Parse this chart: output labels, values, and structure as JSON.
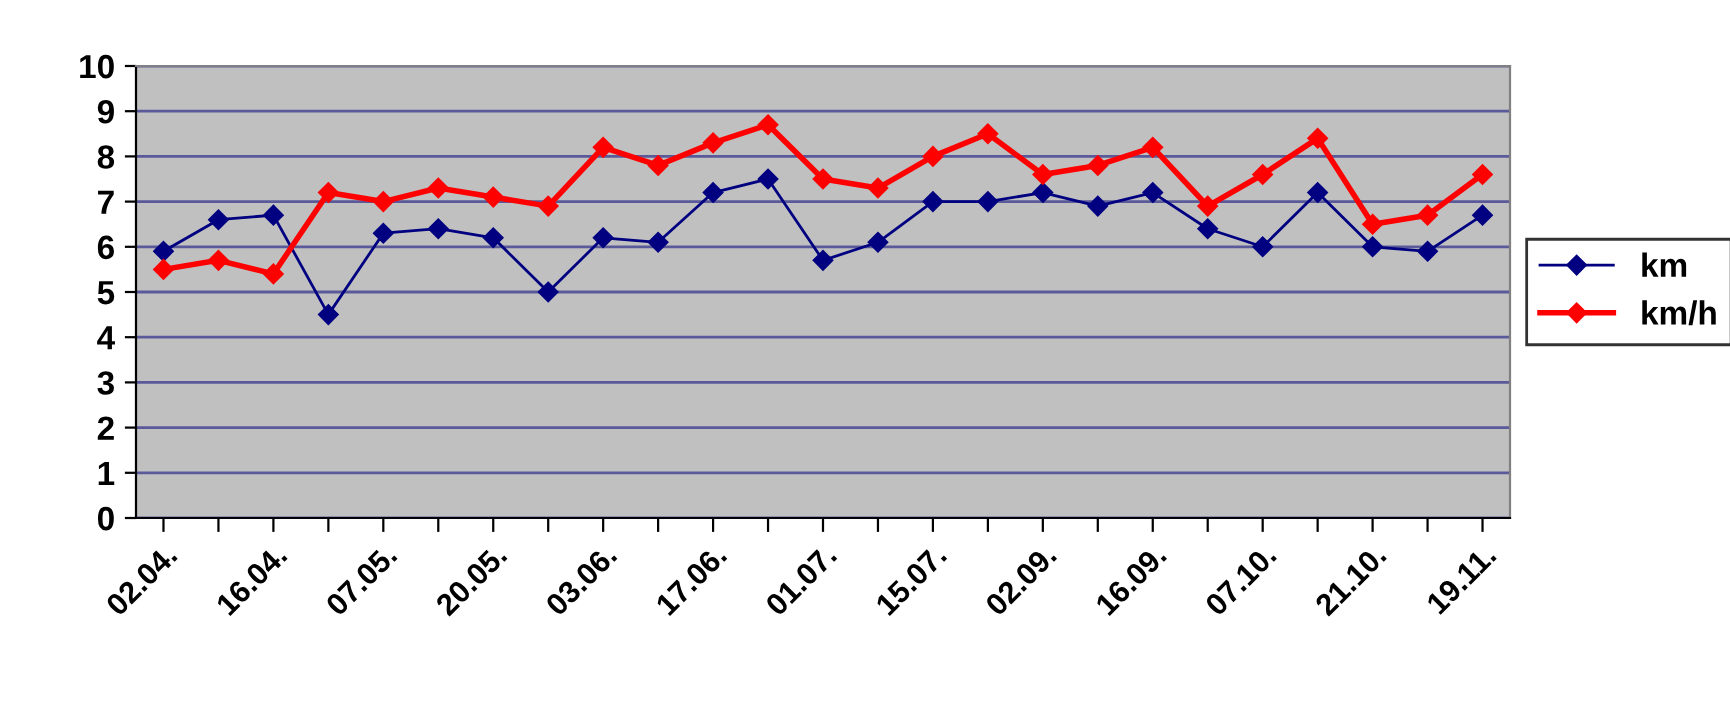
{
  "chart_data": {
    "type": "line",
    "categories": [
      "02.04.",
      null,
      "16.04.",
      null,
      "07.05.",
      null,
      "20.05.",
      null,
      "03.06.",
      null,
      "17.06.",
      null,
      "01.07.",
      null,
      "15.07.",
      null,
      "02.09.",
      null,
      "16.09.",
      null,
      "07.10.",
      null,
      "21.10.",
      null,
      "19.11."
    ],
    "series": [
      {
        "name": "km",
        "color": "#000080",
        "values": [
          5.9,
          6.6,
          6.7,
          4.5,
          6.3,
          6.4,
          6.2,
          5.0,
          6.2,
          6.1,
          7.2,
          7.5,
          5.7,
          6.1,
          7.0,
          7.0,
          7.2,
          6.9,
          7.2,
          6.4,
          6.0,
          7.2,
          6.0,
          5.9,
          6.7
        ]
      },
      {
        "name": "km/h",
        "color": "#ff0000",
        "values": [
          5.5,
          5.7,
          5.4,
          7.2,
          7.0,
          7.3,
          7.1,
          6.9,
          8.2,
          7.8,
          8.3,
          8.7,
          7.5,
          7.3,
          8.0,
          8.5,
          7.6,
          7.8,
          8.2,
          6.9,
          7.6,
          8.4,
          6.5,
          6.7,
          7.6
        ]
      }
    ],
    "ylim": [
      0,
      10
    ],
    "yticks": [
      0,
      1,
      2,
      3,
      4,
      5,
      6,
      7,
      8,
      9,
      10
    ],
    "grid": "y",
    "legend": "right",
    "marker": "diamond",
    "line_style": "solid"
  }
}
